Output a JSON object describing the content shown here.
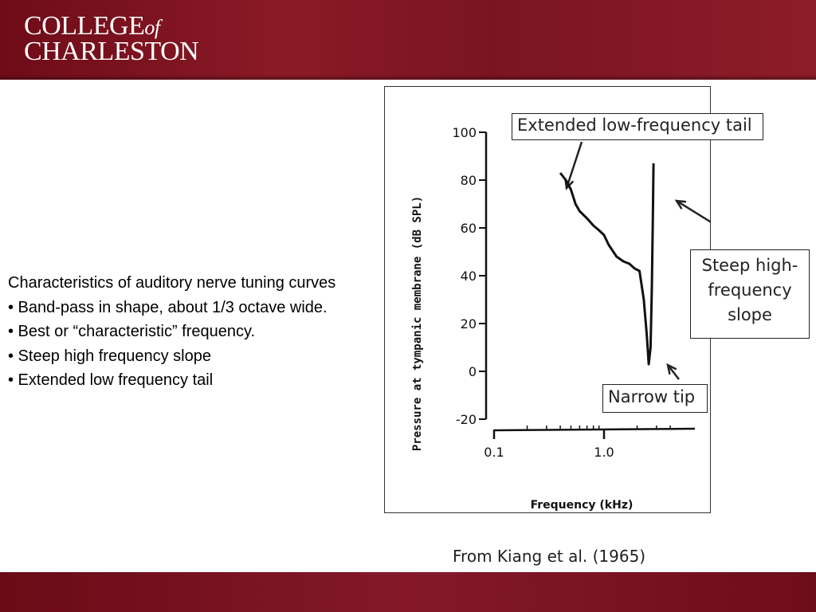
{
  "header": {
    "logo_line1": "COLLEGE",
    "logo_of": "of",
    "logo_line2": "CHARLESTON"
  },
  "bullets": [
    "Characteristics of auditory nerve tuning curves",
    "• Band-pass in shape, about 1/3 octave wide.",
    "• Best or “characteristic” frequency.",
    "• Steep high frequency slope",
    "• Extended low frequency tail"
  ],
  "credit": "From Kiang et al. (1965)",
  "chart_data": {
    "type": "line",
    "title": "",
    "xlabel": "Frequency (kHz)",
    "ylabel": "Pressure at tympanic membrane (dB SPL)",
    "x_scale": "log",
    "xlim": [
      0.1,
      4.0
    ],
    "ylim": [
      -20,
      100
    ],
    "x_ticks": [
      {
        "value": 0.1,
        "label": "0.1"
      },
      {
        "value": 1.0,
        "label": "1.0"
      }
    ],
    "y_ticks": [
      -20,
      0,
      20,
      40,
      60,
      80,
      100
    ],
    "series": [
      {
        "x": [
          0.4,
          0.45,
          0.5,
          0.55,
          0.6,
          0.7,
          0.8,
          0.9,
          1.0,
          1.1,
          1.3,
          1.5,
          1.7,
          1.9,
          2.1,
          2.3,
          2.45,
          2.55,
          2.65,
          2.72,
          2.78,
          2.82
        ],
        "y": [
          83,
          80,
          76,
          70,
          67,
          64,
          61,
          59,
          57,
          53,
          48,
          46,
          45,
          43,
          42,
          30,
          15,
          3,
          10,
          35,
          65,
          87
        ]
      }
    ],
    "annotations": [
      {
        "text": "Extended low-frequency tail"
      },
      {
        "text": "Steep high-frequency slope"
      },
      {
        "text": "Narrow tip"
      }
    ],
    "grid": false,
    "legend": "none"
  }
}
